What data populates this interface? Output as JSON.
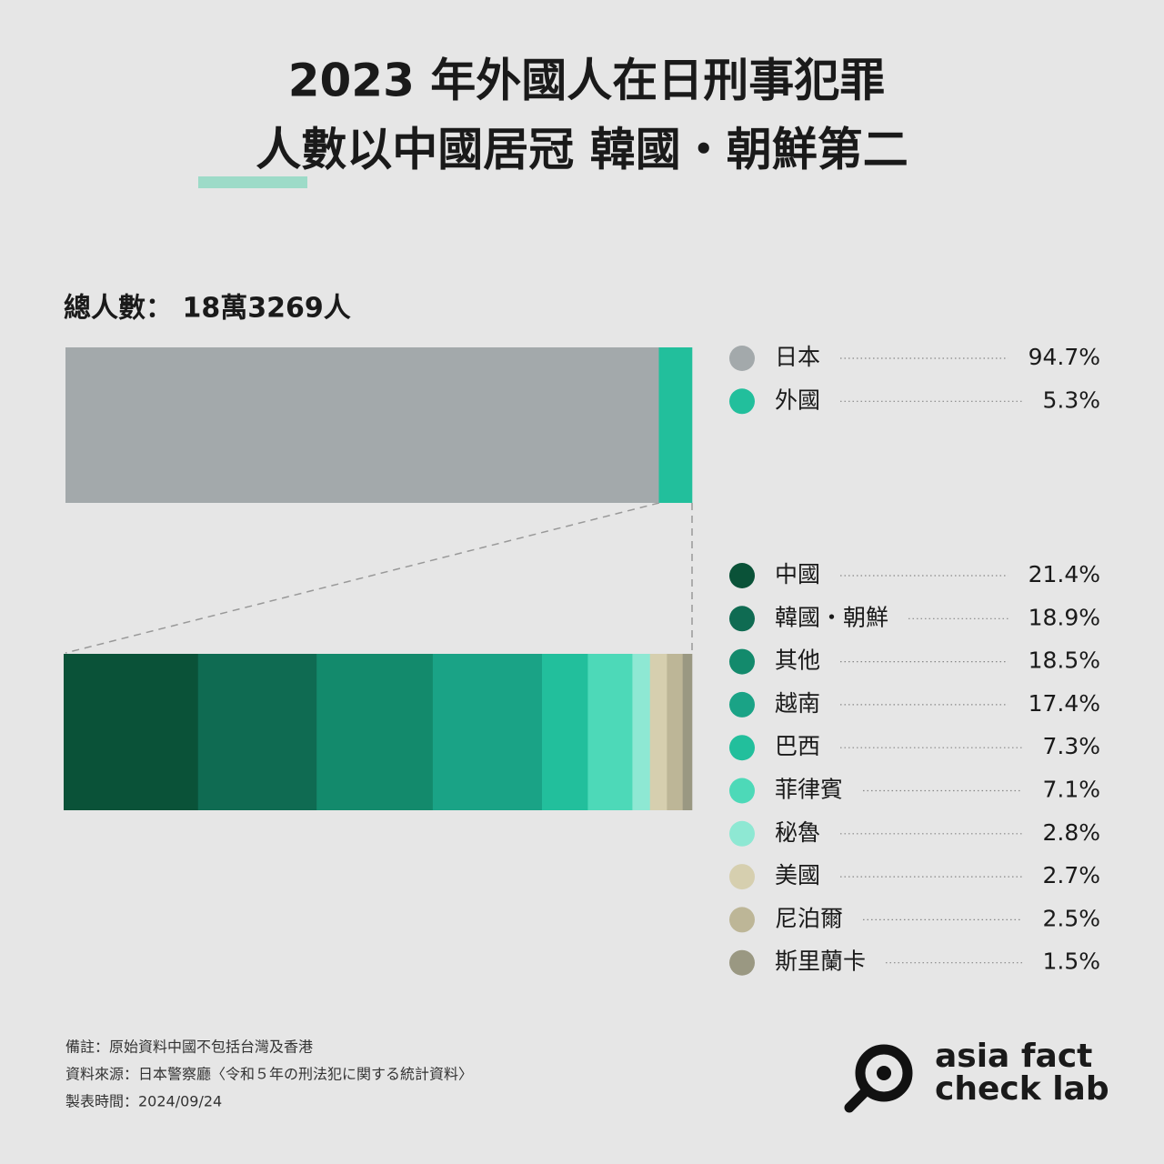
{
  "title": [
    "2023 年外國人在日刑事犯罪",
    "人數以中國居冠 韓國・朝鮮第二"
  ],
  "chart_data": [
    {
      "type": "stacked-bar",
      "subtitle": "總人數： 18萬3269人",
      "labels": [
        "日本",
        "外國"
      ],
      "values": [
        94.7,
        5.3
      ],
      "value_labels": [
        "94.7%",
        "5.3%"
      ],
      "colors": [
        "#a3a9ab",
        "#22bf9c"
      ]
    },
    {
      "type": "stacked-bar",
      "labels": [
        "中國",
        "韓國・朝鮮",
        "其他",
        "越南",
        "巴西",
        "菲律賓",
        "秘魯",
        "美國",
        "尼泊爾",
        "斯里蘭卡"
      ],
      "values": [
        21.4,
        18.9,
        18.5,
        17.4,
        7.3,
        7.1,
        2.8,
        2.7,
        2.5,
        1.5
      ],
      "value_labels": [
        "21.4%",
        "18.9%",
        "18.5%",
        "17.4%",
        "7.3%",
        "7.1%",
        "2.8%",
        "2.7%",
        "2.5%",
        "1.5%"
      ],
      "colors": [
        "#0a5238",
        "#0f6b52",
        "#138a6c",
        "#1aa386",
        "#22bf9c",
        "#4dd9b8",
        "#8ee8d3",
        "#d6cfaf",
        "#bdb697",
        "#9a9882"
      ]
    }
  ],
  "notes": [
    "備註：原始資料中國不包括台灣及香港",
    "資料來源：日本警察廳〈令和５年の刑法犯に関する統計資料〉",
    "製表時間：2024/09/24"
  ],
  "logo": [
    "asia fact",
    "check lab"
  ]
}
